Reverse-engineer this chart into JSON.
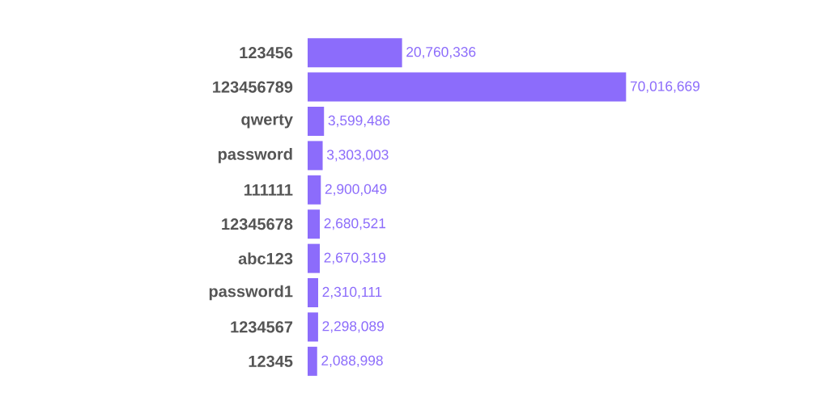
{
  "chart_data": {
    "type": "bar",
    "orientation": "horizontal",
    "categories": [
      "123456",
      "123456789",
      "qwerty",
      "password",
      "111111",
      "12345678",
      "abc123",
      "password1",
      "1234567",
      "12345"
    ],
    "values": [
      20760336,
      70016669,
      3599486,
      3303003,
      2900049,
      2680521,
      2670319,
      2310111,
      2298089,
      2088998
    ],
    "value_labels": [
      "20,760,336",
      "70,016,669",
      "3,599,486",
      "3,303,003",
      "2,900,049",
      "2,680,521",
      "2,670,319",
      "2,310,111",
      "2,298,089",
      "2,088,998"
    ],
    "color": "#8c6cfb"
  }
}
